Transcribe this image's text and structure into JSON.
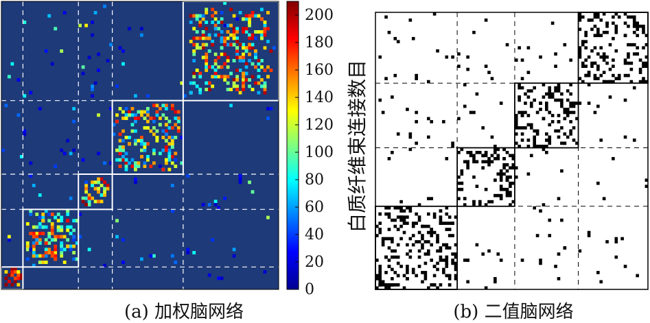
{
  "chart_data": [
    {
      "type": "heatmap",
      "title": "(a) 加权脑网络",
      "colorbar": {
        "label": "白质纤维束连接数目",
        "ticks": [
          0,
          20,
          40,
          60,
          80,
          100,
          120,
          140,
          160,
          180,
          200
        ],
        "range": [
          0,
          210
        ],
        "colormap": "jet"
      },
      "matrix_size": 90,
      "background_color": "#1e3a78",
      "modules": [
        {
          "start": 0,
          "end": 7
        },
        {
          "start": 7,
          "end": 25
        },
        {
          "start": 25,
          "end": 36
        },
        {
          "start": 36,
          "end": 59
        },
        {
          "start": 59,
          "end": 90
        }
      ],
      "sparse_clusters": [
        {
          "row": 3,
          "col": 3,
          "spread": 3,
          "value": 190,
          "count": 14
        },
        {
          "row": 16,
          "col": 16,
          "spread": 8,
          "value": 110,
          "count": 70
        },
        {
          "row": 30,
          "col": 30,
          "spread": 4,
          "value": 150,
          "count": 22
        },
        {
          "row": 47,
          "col": 47,
          "spread": 10,
          "value": 120,
          "count": 90
        },
        {
          "row": 74,
          "col": 74,
          "spread": 13,
          "value": 130,
          "count": 140
        }
      ]
    },
    {
      "type": "heatmap",
      "title": "(b) 二值脑网络",
      "matrix_size": 90,
      "palette": [
        "#ffffff",
        "#000000"
      ],
      "modules": [
        {
          "start": 0,
          "end": 27
        },
        {
          "start": 27,
          "end": 46
        },
        {
          "start": 46,
          "end": 67
        },
        {
          "start": 67,
          "end": 90
        }
      ]
    }
  ]
}
